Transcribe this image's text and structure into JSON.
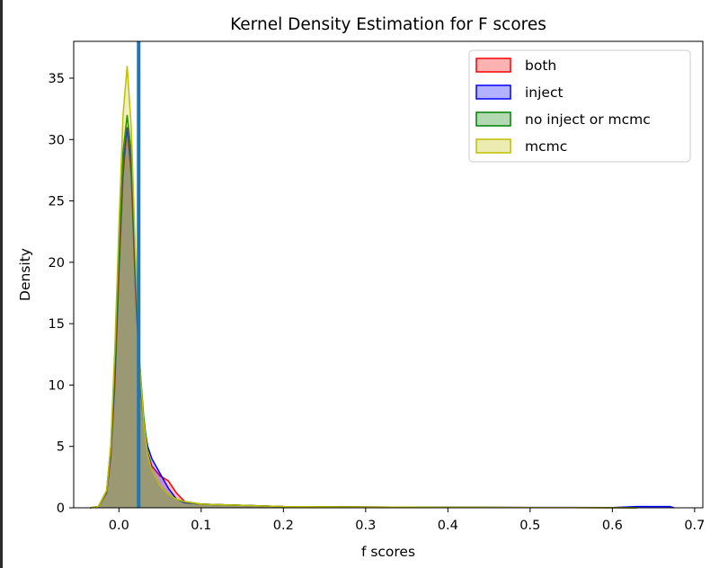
{
  "chart_data": {
    "type": "area",
    "title": "Kernel Density Estimation for F scores",
    "xlabel": "f scores",
    "ylabel": "Density",
    "xlim": [
      -0.055,
      0.71
    ],
    "ylim": [
      0,
      38
    ],
    "xticks": [
      0.0,
      0.1,
      0.2,
      0.3,
      0.4,
      0.5,
      0.6,
      0.7
    ],
    "yticks": [
      0,
      5,
      10,
      15,
      20,
      25,
      30,
      35
    ],
    "grid": false,
    "legend_position": "top-right",
    "vertical_line": {
      "x": 0.024,
      "color": "#1f77b4"
    },
    "series": [
      {
        "name": "both",
        "color": "#ff0000",
        "points": [
          [
            -0.035,
            0
          ],
          [
            -0.025,
            0.1
          ],
          [
            -0.015,
            1.2
          ],
          [
            -0.01,
            4
          ],
          [
            -0.005,
            10
          ],
          [
            0.0,
            19
          ],
          [
            0.005,
            27
          ],
          [
            0.01,
            31
          ],
          [
            0.015,
            27
          ],
          [
            0.02,
            18
          ],
          [
            0.025,
            11
          ],
          [
            0.03,
            7
          ],
          [
            0.035,
            4.5
          ],
          [
            0.04,
            3.4
          ],
          [
            0.05,
            2.6
          ],
          [
            0.06,
            2.2
          ],
          [
            0.07,
            1.2
          ],
          [
            0.08,
            0.5
          ],
          [
            0.1,
            0.3
          ],
          [
            0.15,
            0.2
          ],
          [
            0.2,
            0.1
          ],
          [
            0.3,
            0.06
          ],
          [
            0.4,
            0.04
          ],
          [
            0.5,
            0.02
          ],
          [
            0.6,
            0.01
          ],
          [
            0.63,
            0
          ]
        ]
      },
      {
        "name": "inject",
        "color": "#0000ff",
        "points": [
          [
            -0.035,
            0
          ],
          [
            -0.025,
            0.1
          ],
          [
            -0.015,
            1.3
          ],
          [
            -0.01,
            4.5
          ],
          [
            -0.005,
            11
          ],
          [
            0.0,
            20
          ],
          [
            0.005,
            28
          ],
          [
            0.01,
            31
          ],
          [
            0.015,
            28
          ],
          [
            0.02,
            19
          ],
          [
            0.025,
            11
          ],
          [
            0.03,
            7
          ],
          [
            0.035,
            5
          ],
          [
            0.04,
            4
          ],
          [
            0.05,
            2.8
          ],
          [
            0.06,
            1.6
          ],
          [
            0.07,
            0.7
          ],
          [
            0.08,
            0.4
          ],
          [
            0.1,
            0.3
          ],
          [
            0.15,
            0.2
          ],
          [
            0.2,
            0.1
          ],
          [
            0.3,
            0.06
          ],
          [
            0.4,
            0.04
          ],
          [
            0.5,
            0.03
          ],
          [
            0.6,
            0.02
          ],
          [
            0.63,
            0.1
          ],
          [
            0.67,
            0.1
          ],
          [
            0.675,
            0
          ]
        ]
      },
      {
        "name": "no inject or mcmc",
        "color": "#008000",
        "points": [
          [
            -0.035,
            0
          ],
          [
            -0.025,
            0.1
          ],
          [
            -0.015,
            1.4
          ],
          [
            -0.01,
            5
          ],
          [
            -0.005,
            12
          ],
          [
            0.0,
            21
          ],
          [
            0.005,
            29
          ],
          [
            0.01,
            32
          ],
          [
            0.015,
            29
          ],
          [
            0.02,
            20
          ],
          [
            0.025,
            12
          ],
          [
            0.03,
            7.5
          ],
          [
            0.035,
            4.5
          ],
          [
            0.04,
            3
          ],
          [
            0.05,
            1.8
          ],
          [
            0.06,
            1.1
          ],
          [
            0.07,
            0.7
          ],
          [
            0.08,
            0.5
          ],
          [
            0.1,
            0.3
          ],
          [
            0.15,
            0.2
          ],
          [
            0.2,
            0.1
          ],
          [
            0.3,
            0.06
          ],
          [
            0.4,
            0.04
          ],
          [
            0.5,
            0.02
          ],
          [
            0.6,
            0.01
          ],
          [
            0.63,
            0
          ]
        ]
      },
      {
        "name": "mcmc",
        "color": "#bfbf00",
        "points": [
          [
            -0.035,
            0
          ],
          [
            -0.025,
            0.1
          ],
          [
            -0.015,
            1.4
          ],
          [
            -0.01,
            5
          ],
          [
            -0.005,
            13
          ],
          [
            0.0,
            23
          ],
          [
            0.005,
            32
          ],
          [
            0.01,
            36
          ],
          [
            0.015,
            31
          ],
          [
            0.02,
            21
          ],
          [
            0.025,
            12
          ],
          [
            0.03,
            7
          ],
          [
            0.035,
            4.3
          ],
          [
            0.04,
            3
          ],
          [
            0.05,
            1.8
          ],
          [
            0.06,
            1.1
          ],
          [
            0.07,
            0.7
          ],
          [
            0.08,
            0.5
          ],
          [
            0.1,
            0.3
          ],
          [
            0.15,
            0.2
          ],
          [
            0.2,
            0.1
          ],
          [
            0.3,
            0.06
          ],
          [
            0.4,
            0.04
          ],
          [
            0.5,
            0.02
          ],
          [
            0.6,
            0.01
          ],
          [
            0.63,
            0
          ]
        ]
      }
    ]
  }
}
